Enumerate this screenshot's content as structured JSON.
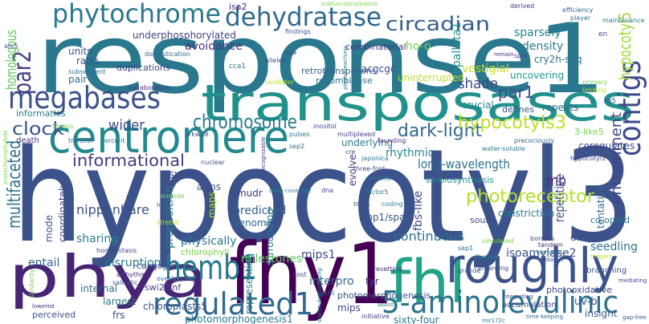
{
  "words": [
    {
      "text": "response1",
      "color": "#2a788e"
    },
    {
      "text": "hypocotyl3",
      "color": "#3b528b"
    },
    {
      "text": "transposases",
      "color": "#21918c"
    },
    {
      "text": "centromere",
      "color": "#23898e"
    },
    {
      "text": "fhy1",
      "color": "#440154"
    },
    {
      "text": "phya",
      "color": "#482475"
    },
    {
      "text": "fhl",
      "color": "#20a386"
    },
    {
      "text": "roughly",
      "color": "#3b528b"
    },
    {
      "text": "5-aminolevulinic",
      "color": "#2c728e"
    },
    {
      "text": "regulated1",
      "color": "#31688e"
    },
    {
      "text": "hemb1",
      "color": "#2a788e"
    },
    {
      "text": "megabases",
      "color": "#3b528b"
    },
    {
      "text": "phytochrome",
      "color": "#2a788e"
    },
    {
      "text": "dehydratase",
      "color": "#31688e"
    },
    {
      "text": "circadian",
      "color": "#365c8d"
    },
    {
      "text": "contigs",
      "color": "#3e4989"
    },
    {
      "text": "entrainment",
      "color": "#414487"
    },
    {
      "text": "hypocotyl5",
      "color": "#a0da39"
    },
    {
      "text": "par2",
      "color": "#433e85"
    },
    {
      "text": "homologous",
      "color": "#5ec962"
    },
    {
      "text": "chromosome",
      "color": "#287c8e"
    },
    {
      "text": "clock",
      "color": "#39568c"
    },
    {
      "text": "wider",
      "color": "#3e4989"
    },
    {
      "text": "informational",
      "color": "#453781"
    },
    {
      "text": "multifaceted",
      "color": "#2d708e"
    },
    {
      "text": "dark-light",
      "color": "#31688e"
    },
    {
      "text": "hypocotyls3",
      "color": "#bddf26"
    },
    {
      "text": "par1",
      "color": "#3e4a89"
    },
    {
      "text": "shade",
      "color": "#414487"
    },
    {
      "text": "long-wavelength",
      "color": "#2d708e"
    },
    {
      "text": "rhythmic",
      "color": "#26828e"
    },
    {
      "text": "photoreceptor",
      "color": "#b5de2b"
    },
    {
      "text": "mb",
      "color": "#482878"
    },
    {
      "text": "repetitive",
      "color": "#3b528b"
    },
    {
      "text": "ho-o",
      "color": "#7ad151"
    },
    {
      "text": "sparsely",
      "color": "#26828e"
    },
    {
      "text": "density",
      "color": "#2a788e"
    },
    {
      "text": "cry2h-seq",
      "color": "#2d708e"
    },
    {
      "text": "uncovering",
      "color": "#1f9e89"
    },
    {
      "text": "repeats",
      "color": "#31688e"
    },
    {
      "text": "combinatorial",
      "color": "#46327e"
    },
    {
      "text": "sepallata1",
      "color": "#21918c"
    },
    {
      "text": "vestigial",
      "color": "#c2df23"
    },
    {
      "text": "crucial",
      "color": "#26828e"
    },
    {
      "text": "defines",
      "color": "#3b528b"
    },
    {
      "text": "acgcgc",
      "color": "#3e4989"
    },
    {
      "text": "uninterrupted",
      "color": "#c2df23"
    },
    {
      "text": "recombinase",
      "color": "#2c728e"
    },
    {
      "text": "retrotransposons",
      "color": "#355f8d"
    },
    {
      "text": "avoidance",
      "color": "#46327e"
    },
    {
      "text": "underphosphorylated",
      "color": "#414487"
    },
    {
      "text": "isa2",
      "color": "#482878"
    },
    {
      "text": "duplications",
      "color": "#404387"
    },
    {
      "text": "units",
      "color": "#3b528b"
    },
    {
      "text": "ratio",
      "color": "#3b528b"
    },
    {
      "text": "pair",
      "color": "#31688e"
    },
    {
      "text": "informatics",
      "color": "#287d8e"
    },
    {
      "text": "death",
      "color": "#46337e"
    },
    {
      "text": "swim",
      "color": "#3e4989"
    },
    {
      "text": "arms",
      "color": "#375a8c"
    },
    {
      "text": "maps",
      "color": "#b5de2b"
    },
    {
      "text": "proposition",
      "color": "#2a788e"
    },
    {
      "text": "nipponbare",
      "color": "#3b528b"
    },
    {
      "text": "sharing",
      "color": "#26828e"
    },
    {
      "text": "entail",
      "color": "#31688e"
    },
    {
      "text": "disruption",
      "color": "#2a788e"
    },
    {
      "text": "physically",
      "color": "#2c728e"
    },
    {
      "text": "chlorophyll",
      "color": "#7ad151"
    },
    {
      "text": "mode",
      "color": "#3b528b"
    },
    {
      "text": "coordinately",
      "color": "#414487"
    },
    {
      "text": "mudr",
      "color": "#46327e"
    },
    {
      "text": "predicted",
      "color": "#355f8d"
    },
    {
      "text": "genome",
      "color": "#31688e"
    },
    {
      "text": "surrounding",
      "color": "#2a788e"
    },
    {
      "text": "milestones",
      "color": "#5ec962"
    },
    {
      "text": "mips1",
      "color": "#3e4989"
    },
    {
      "text": "cacgcgc",
      "color": "#3b528b"
    },
    {
      "text": "mips2",
      "color": "#2a788e"
    },
    {
      "text": "interpro",
      "color": "#31688e"
    },
    {
      "text": "tyr",
      "color": "#3e4989"
    },
    {
      "text": "continuous",
      "color": "#2c728e"
    },
    {
      "text": "isoamylase2",
      "color": "#3b528b"
    },
    {
      "text": "cop1/spa1",
      "color": "#375a8c"
    },
    {
      "text": "fbs-like",
      "color": "#3e4989"
    },
    {
      "text": "constriction",
      "color": "#2a788e"
    },
    {
      "text": "seedling",
      "color": "#2d708e"
    },
    {
      "text": "tentative",
      "color": "#31688e"
    },
    {
      "text": "daily",
      "color": "#3b528b"
    },
    {
      "text": "south",
      "color": "#3e4989"
    },
    {
      "text": "co-opted",
      "color": "#2c728e"
    },
    {
      "text": "3-like5",
      "color": "#7ad151"
    },
    {
      "text": "coregulates",
      "color": "#3e4989"
    },
    {
      "text": "evolve",
      "color": "#46327e"
    },
    {
      "text": "underlying",
      "color": "#2a788e"
    },
    {
      "text": "sa-biosynthesis",
      "color": "#21918c"
    },
    {
      "text": "sixty-four",
      "color": "#2a788e"
    },
    {
      "text": "photomorphogenesis1",
      "color": "#2a788e"
    },
    {
      "text": "chloroplasts5",
      "color": "#3b528b"
    },
    {
      "text": "largest",
      "color": "#2a788e"
    },
    {
      "text": "internal",
      "color": "#31688e"
    },
    {
      "text": "perceived",
      "color": "#3b528b"
    },
    {
      "text": "frs",
      "color": "#3e4989"
    },
    {
      "text": "swi2/snf",
      "color": "#414487"
    },
    {
      "text": "representing",
      "color": "#2a788e"
    },
    {
      "text": "mips",
      "color": "#3e4989"
    },
    {
      "text": "photomorphogenesis",
      "color": "#3b528b"
    },
    {
      "text": "uv-b",
      "color": "#3e4989"
    },
    {
      "text": "insight",
      "color": "#375a8c"
    },
    {
      "text": "photooxidative",
      "color": "#3e4989"
    },
    {
      "text": "accumulation",
      "color": "#414487"
    },
    {
      "text": "branching",
      "color": "#3b528b"
    },
    {
      "text": "subfunctionalization",
      "color": "#7ad151"
    },
    {
      "text": "findings",
      "color": "#3b528b"
    },
    {
      "text": "derived",
      "color": "#46327e"
    },
    {
      "text": "efficiency",
      "color": "#31688e"
    },
    {
      "text": "maintenance",
      "color": "#2a788e"
    },
    {
      "text": "en",
      "color": "#3e4989"
    },
    {
      "text": "essential",
      "color": "#26828e"
    },
    {
      "text": "spl4",
      "color": "#414487"
    },
    {
      "text": "player",
      "color": "#2c728e"
    },
    {
      "text": "remain",
      "color": "#46327e"
    },
    {
      "text": "arc5",
      "color": "#3b528b"
    },
    {
      "text": "domestication",
      "color": "#31688e"
    },
    {
      "text": "cca1",
      "color": "#2a788e"
    },
    {
      "text": "spa",
      "color": "#3e4989"
    },
    {
      "text": "alleles",
      "color": "#414487"
    },
    {
      "text": "photobleaching",
      "color": "#2d708e"
    },
    {
      "text": "collaboration",
      "color": "#46327e"
    },
    {
      "text": "arkw28",
      "color": "#3b528b"
    },
    {
      "text": "transfer",
      "color": "#31688e"
    },
    {
      "text": "percent",
      "color": "#2a788e"
    },
    {
      "text": "fitness",
      "color": "#7ad151"
    },
    {
      "text": "inositol",
      "color": "#3e4989"
    },
    {
      "text": "pulses",
      "color": "#2c728e"
    },
    {
      "text": "multiplexed",
      "color": "#414487"
    },
    {
      "text": "founding",
      "color": "#46327e"
    },
    {
      "text": "oscillator",
      "color": "#b5de2b"
    },
    {
      "text": "cre",
      "color": "#3b528b"
    },
    {
      "text": "sep2",
      "color": "#31688e"
    },
    {
      "text": "japonica",
      "color": "#2a788e"
    },
    {
      "text": "three-fold",
      "color": "#3e4989"
    },
    {
      "text": "deep-coverage",
      "color": "#26828e"
    },
    {
      "text": "dna",
      "color": "#414487"
    },
    {
      "text": "exhibits",
      "color": "#2c728e"
    },
    {
      "text": "recognizable",
      "color": "#46327e"
    },
    {
      "text": "nuclear",
      "color": "#3b528b"
    },
    {
      "text": "encode",
      "color": "#7ad151"
    },
    {
      "text": "lose",
      "color": "#31688e"
    },
    {
      "text": "factor5",
      "color": "#2a788e"
    },
    {
      "text": "trnas",
      "color": "#3e4989"
    },
    {
      "text": "coding",
      "color": "#26828e"
    },
    {
      "text": "stretch",
      "color": "#b5de2b"
    },
    {
      "text": "homeostasis",
      "color": "#414487"
    },
    {
      "text": "arrhythmic",
      "color": "#46327e"
    },
    {
      "text": "salicylic",
      "color": "#3b528b"
    },
    {
      "text": "overlapping",
      "color": "#2c728e"
    },
    {
      "text": "similarity",
      "color": "#7ad151"
    },
    {
      "text": "cyclic",
      "color": "#31688e"
    },
    {
      "text": "starch-debranching",
      "color": "#2a788e"
    },
    {
      "text": "cost",
      "color": "#3e4989"
    },
    {
      "text": "initiative",
      "color": "#414487"
    },
    {
      "text": "assist",
      "color": "#26828e"
    },
    {
      "text": "resetting",
      "color": "#46327e"
    },
    {
      "text": "grande",
      "color": "#3b528b"
    },
    {
      "text": "sep1",
      "color": "#31688e"
    },
    {
      "text": "diverse",
      "color": "#2a788e"
    },
    {
      "text": "emerging",
      "color": "#3e4989"
    },
    {
      "text": "simulated",
      "color": "#7ad151"
    },
    {
      "text": "borders",
      "color": "#414487"
    },
    {
      "text": "tandem",
      "color": "#46327e"
    },
    {
      "text": "elements",
      "color": "#2c728e"
    },
    {
      "text": "oxidative",
      "color": "#3b528b"
    },
    {
      "text": "precociously",
      "color": "#31688e"
    },
    {
      "text": "water-soluble",
      "color": "#2a788e"
    },
    {
      "text": "limiting",
      "color": "#c2df23"
    },
    {
      "text": "primary",
      "color": "#7ad151"
    },
    {
      "text": "hy5",
      "color": "#3e4989"
    },
    {
      "text": "hypocotyl1",
      "color": "#414487"
    },
    {
      "text": "protochlorophyllide",
      "color": "#7ad151"
    },
    {
      "text": "subsequent",
      "color": "#2c728e"
    },
    {
      "text": "lowered",
      "color": "#46327e"
    },
    {
      "text": "gap-free",
      "color": "#3b528b"
    },
    {
      "text": "time-keeping",
      "color": "#31688e"
    },
    {
      "text": "mir172c",
      "color": "#2a788e"
    },
    {
      "text": "integrating",
      "color": "#3e4989"
    },
    {
      "text": "triggers",
      "color": "#c2df23"
    },
    {
      "text": "mediating",
      "color": "#414487"
    }
  ]
}
